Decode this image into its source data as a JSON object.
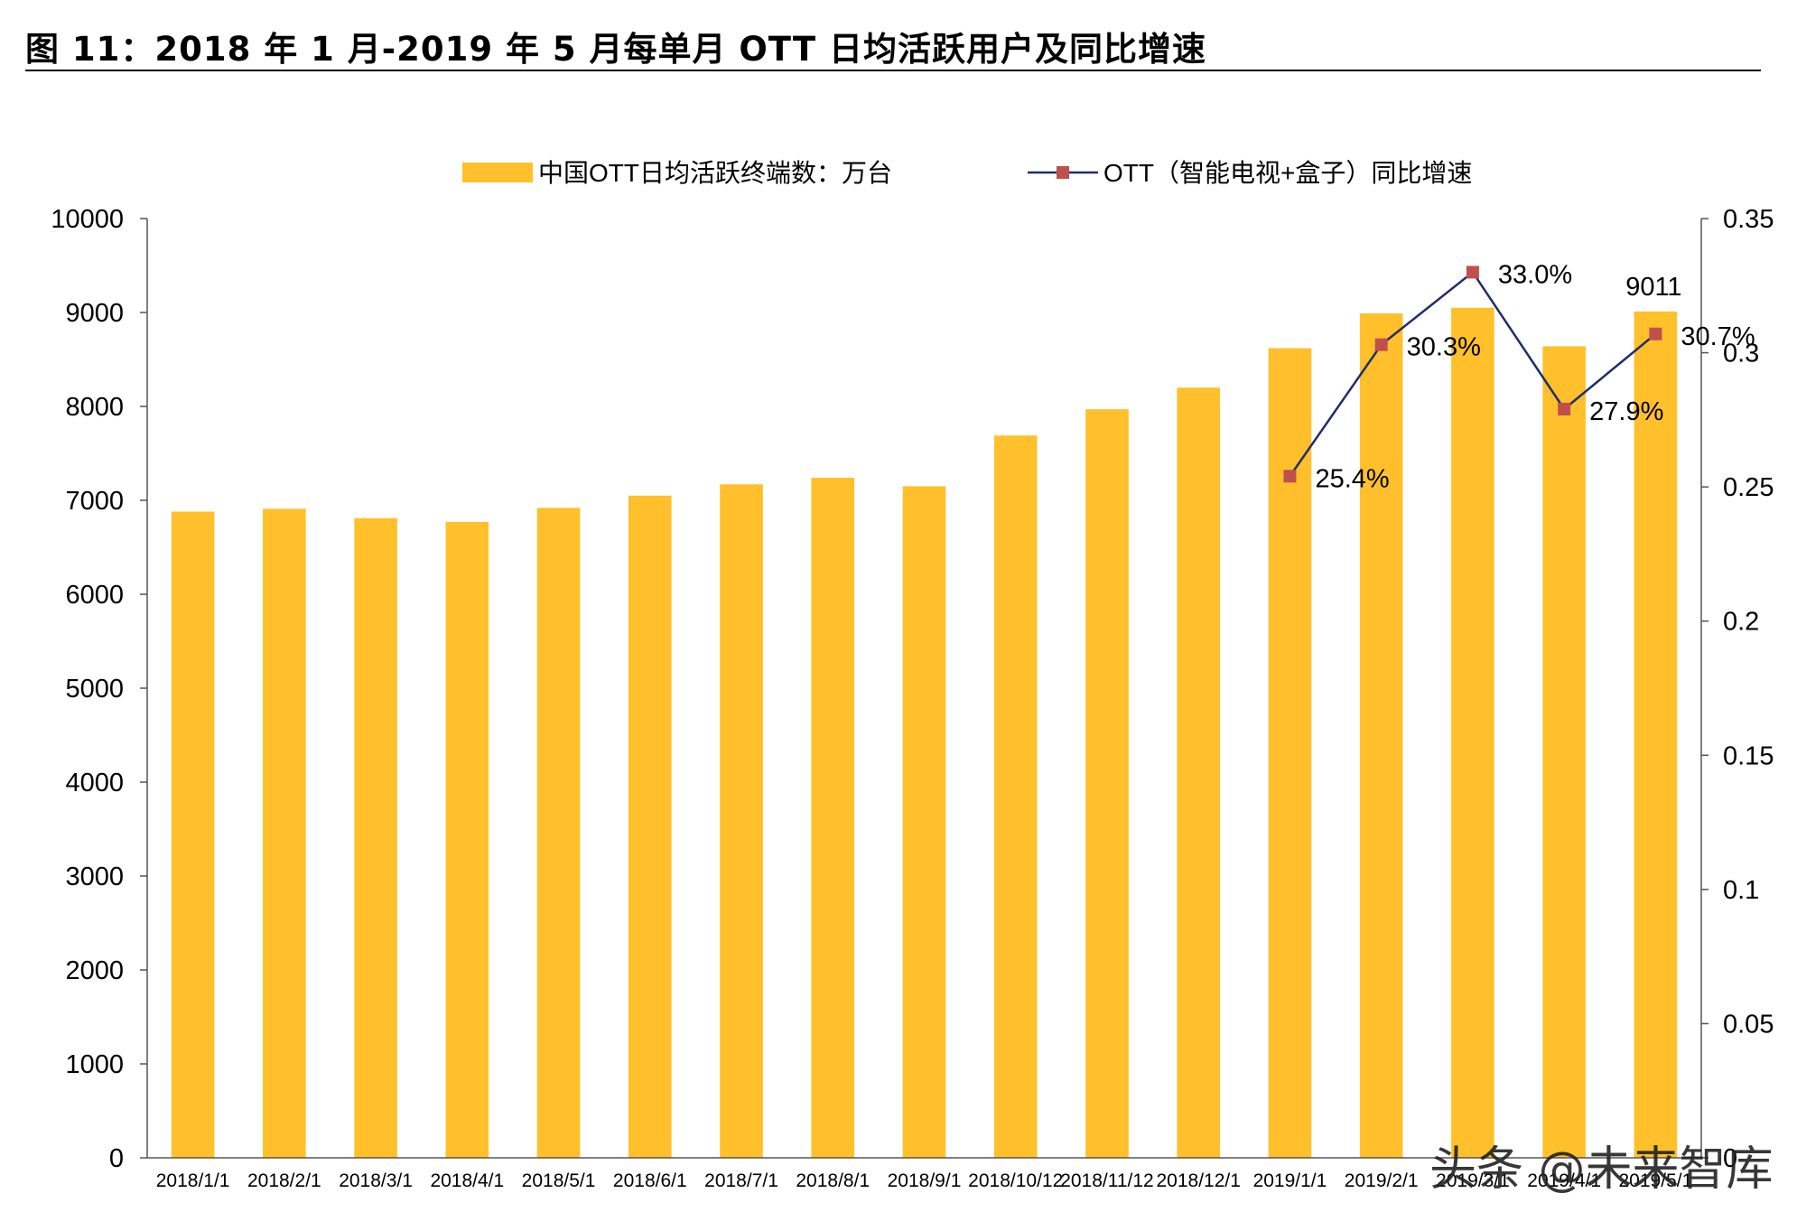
{
  "figure_title": "图 11：2018 年 1 月-2019 年 5 月每单月 OTT 日均活跃用户及同比增速",
  "watermark": "头条 @未来智库",
  "chart_data": {
    "type": "bar",
    "categories": [
      "2018/1/1",
      "2018/2/1",
      "2018/3/1",
      "2018/4/1",
      "2018/5/1",
      "2018/6/1",
      "2018/7/1",
      "2018/8/1",
      "2018/9/1",
      "2018/10/12",
      "2018/11/12",
      "2018/12/1",
      "2019/1/1",
      "2019/2/1",
      "2019/3/1",
      "2019/4/1",
      "2019/5/1"
    ],
    "series": [
      {
        "name": "中国OTT日均活跃终端数：万台",
        "type": "bar",
        "axis": "left",
        "color": "#FFC02B",
        "values": [
          6880,
          6910,
          6810,
          6770,
          6920,
          7050,
          7170,
          7240,
          7150,
          7690,
          7970,
          8200,
          8620,
          8990,
          9050,
          8640,
          9011
        ]
      },
      {
        "name": "OTT（智能电视+盒子）同比增速",
        "type": "line",
        "axis": "right",
        "line_color": "#1F2D6B",
        "marker_color": "#C0504D",
        "values": [
          null,
          null,
          null,
          null,
          null,
          null,
          null,
          null,
          null,
          null,
          null,
          null,
          0.254,
          0.303,
          0.33,
          0.279,
          0.307
        ]
      }
    ],
    "data_labels": {
      "line": [
        "25.4%",
        "30.3%",
        "33.0%",
        "27.9%",
        "30.7%"
      ],
      "bar_last": "9011"
    },
    "y_left": {
      "ylim": [
        0,
        10000
      ],
      "ticks": [
        "0",
        "1000",
        "2000",
        "3000",
        "4000",
        "5000",
        "6000",
        "7000",
        "8000",
        "9000",
        "10000"
      ]
    },
    "y_right": {
      "ylim": [
        0,
        0.35
      ],
      "ticks": [
        "0",
        "0.05",
        "0.1",
        "0.15",
        "0.2",
        "0.25",
        "0.3",
        "0.35"
      ]
    },
    "legend_placement": "top-center",
    "grid": false
  }
}
